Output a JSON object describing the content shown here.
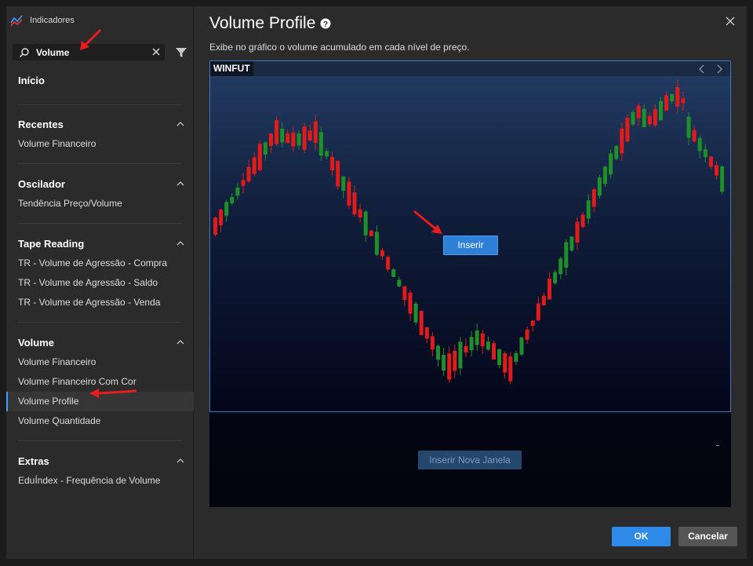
{
  "app": {
    "title": "Indicadores"
  },
  "search": {
    "value": "Volume",
    "placeholder": ""
  },
  "menu": {
    "home": "Início",
    "sections": [
      {
        "title": "Recentes",
        "items": [
          "Volume Financeiro"
        ]
      },
      {
        "title": "Oscilador",
        "items": [
          "Tendência Preço/Volume"
        ]
      },
      {
        "title": "Tape Reading",
        "items": [
          "TR - Volume de Agressão - Compra",
          "TR - Volume de Agressão - Saldo",
          "TR - Volume de Agressão - Venda"
        ]
      },
      {
        "title": "Volume",
        "items": [
          "Volume Financeiro",
          "Volume Financeiro Com Cor",
          "Volume Profile",
          "Volume Quantidade"
        ],
        "active": "Volume Profile"
      },
      {
        "title": "Extras",
        "items": [
          "EduÍndex - Frequência de Volume"
        ]
      }
    ]
  },
  "main": {
    "title": "Volume Profile",
    "description": "Exibe no gráfico o volume acumulado em cada nível de preço."
  },
  "preview": {
    "symbol": "WINFUT",
    "insert_label": "Inserir",
    "insert_new_window_label": "Inserir Nova Janela"
  },
  "footer": {
    "ok_label": "OK",
    "cancel_label": "Cancelar"
  },
  "colors": {
    "accent": "#2e8ae8",
    "bull": "#1f8f2a",
    "bear": "#e01b1b",
    "annotation": "#e81c1c"
  },
  "icons": {
    "app": "indicator-chart-icon",
    "search": "search-icon",
    "clear": "close-icon",
    "filter": "filter-icon",
    "help": "help-circle-icon",
    "close": "close-icon",
    "section_toggle": "chevron-up-icon",
    "nav_prev": "chevron-left-icon",
    "nav_next": "chevron-right-icon"
  }
}
